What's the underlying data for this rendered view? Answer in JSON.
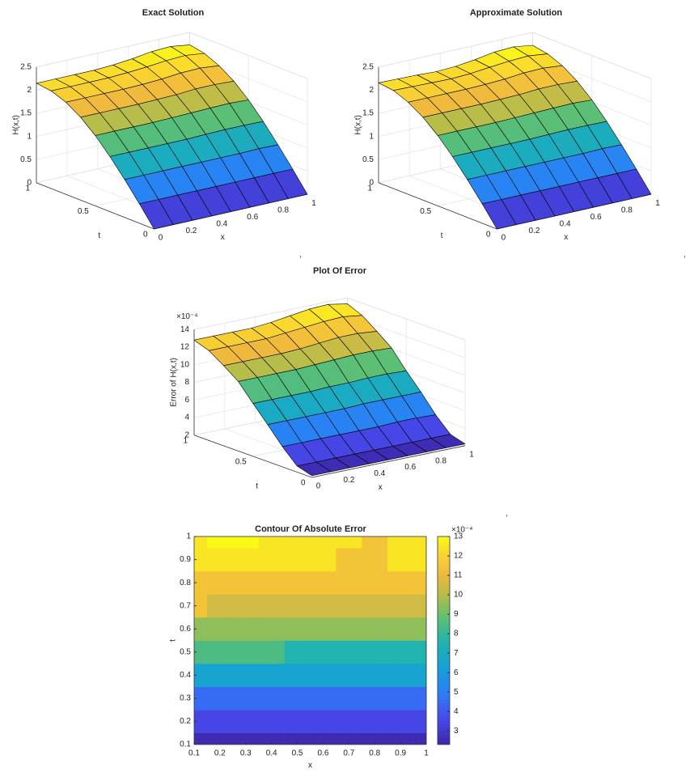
{
  "chart_data": [
    {
      "type": "surface",
      "title": "Exact Solution",
      "xlabel": "x",
      "ylabel": "t",
      "zlabel": "H(x,t)",
      "x": [
        0,
        0.125,
        0.25,
        0.375,
        0.5,
        0.625,
        0.75,
        0.875,
        1
      ],
      "y": [
        0,
        0.125,
        0.25,
        0.375,
        0.5,
        0.625,
        0.75,
        0.875,
        1
      ],
      "z": [
        [
          0,
          0,
          0,
          0,
          0,
          0,
          0,
          0,
          0
        ],
        [
          0.42,
          0.42,
          0.42,
          0.42,
          0.42,
          0.42,
          0.42,
          0.42,
          0.42
        ],
        [
          0.82,
          0.82,
          0.82,
          0.82,
          0.82,
          0.82,
          0.82,
          0.83,
          0.82
        ],
        [
          1.19,
          1.19,
          1.19,
          1.19,
          1.19,
          1.2,
          1.21,
          1.21,
          1.2
        ],
        [
          1.52,
          1.52,
          1.52,
          1.52,
          1.53,
          1.54,
          1.55,
          1.56,
          1.54
        ],
        [
          1.79,
          1.79,
          1.79,
          1.79,
          1.8,
          1.81,
          1.84,
          1.84,
          1.82
        ],
        [
          1.99,
          1.99,
          1.99,
          1.99,
          2,
          2.02,
          2.06,
          2.07,
          2.03
        ],
        [
          2.11,
          2.11,
          2.11,
          2.11,
          2.13,
          2.16,
          2.2,
          2.22,
          2.17
        ],
        [
          2.15,
          2.15,
          2.15,
          2.15,
          2.17,
          2.21,
          2.27,
          2.29,
          2.23
        ]
      ],
      "xlim": [
        0,
        1
      ],
      "ylim": [
        0,
        1
      ],
      "zlim": [
        0,
        2.5
      ],
      "xticks": [
        0,
        0.2,
        0.4,
        0.6,
        0.8,
        1
      ],
      "yticks": [
        0,
        0.5,
        1
      ],
      "zticks": [
        0,
        0.5,
        1,
        1.5,
        2,
        2.5
      ],
      "grid": true
    },
    {
      "type": "surface",
      "title": "Approximate Solution",
      "xlabel": "x",
      "ylabel": "t",
      "zlabel": "H(x,t)",
      "x": [
        0,
        0.125,
        0.25,
        0.375,
        0.5,
        0.625,
        0.75,
        0.875,
        1
      ],
      "y": [
        0,
        0.125,
        0.25,
        0.375,
        0.5,
        0.625,
        0.75,
        0.875,
        1
      ],
      "z": [
        [
          0,
          0,
          0,
          0,
          0,
          0,
          0,
          0,
          0
        ],
        [
          0.42,
          0.42,
          0.42,
          0.42,
          0.42,
          0.42,
          0.42,
          0.42,
          0.42
        ],
        [
          0.82,
          0.82,
          0.82,
          0.82,
          0.82,
          0.82,
          0.82,
          0.83,
          0.82
        ],
        [
          1.19,
          1.19,
          1.19,
          1.19,
          1.19,
          1.2,
          1.21,
          1.21,
          1.2
        ],
        [
          1.52,
          1.52,
          1.52,
          1.52,
          1.53,
          1.54,
          1.55,
          1.56,
          1.54
        ],
        [
          1.79,
          1.79,
          1.79,
          1.79,
          1.8,
          1.81,
          1.84,
          1.84,
          1.82
        ],
        [
          1.99,
          1.99,
          1.99,
          1.99,
          2,
          2.02,
          2.06,
          2.07,
          2.03
        ],
        [
          2.12,
          2.11,
          2.1,
          2.09,
          2.11,
          2.15,
          2.19,
          2.21,
          2.16
        ],
        [
          2.16,
          2.15,
          2.14,
          2.12,
          2.14,
          2.19,
          2.26,
          2.28,
          2.22
        ]
      ],
      "xlim": [
        0,
        1
      ],
      "ylim": [
        0,
        1
      ],
      "zlim": [
        0,
        2.5
      ],
      "xticks": [
        0,
        0.2,
        0.4,
        0.6,
        0.8,
        1
      ],
      "yticks": [
        0,
        0.5,
        1
      ],
      "zticks": [
        0,
        0.5,
        1,
        1.5,
        2,
        2.5
      ],
      "grid": true
    },
    {
      "type": "surface",
      "title": "Plot Of Error",
      "xlabel": "x",
      "ylabel": "t",
      "zlabel": "Error of H(x,t)",
      "z_exponent_label": "×10⁻⁴",
      "x": [
        0,
        0.125,
        0.25,
        0.375,
        0.5,
        0.625,
        0.75,
        0.875,
        1
      ],
      "y": [
        0,
        0.125,
        0.25,
        0.375,
        0.5,
        0.625,
        0.75,
        0.875,
        1
      ],
      "z": [
        [
          2.2,
          2.2,
          2.2,
          2.2,
          2.2,
          2.2,
          2.2,
          2.2,
          2.2
        ],
        [
          2.7,
          2.7,
          2.7,
          2.7,
          2.7,
          2.7,
          2.7,
          2.7,
          2.7
        ],
        [
          4.3,
          4.3,
          4.3,
          4.3,
          4.3,
          4.3,
          4.4,
          4.4,
          4.3
        ],
        [
          6.2,
          6.2,
          6.2,
          6.2,
          6.2,
          6.3,
          6.3,
          6.3,
          6.3
        ],
        [
          8,
          8,
          8,
          8,
          8.1,
          8.1,
          8.2,
          8.2,
          8.1
        ],
        [
          9.9,
          9.9,
          9.9,
          9.9,
          10,
          10.1,
          10.2,
          10.2,
          10.1
        ],
        [
          11.1,
          11.1,
          11.1,
          11.1,
          11.2,
          11.4,
          11.6,
          11.6,
          11.4
        ],
        [
          12.2,
          12.2,
          12.2,
          12.2,
          12.4,
          12.6,
          12.8,
          12.9,
          12.6
        ],
        [
          12.8,
          12.8,
          12.8,
          12.8,
          13,
          13.3,
          13.6,
          13.7,
          13.3
        ]
      ],
      "xlim": [
        0,
        1
      ],
      "ylim": [
        0,
        1
      ],
      "zlim": [
        2,
        14
      ],
      "xticks": [
        0,
        0.2,
        0.4,
        0.6,
        0.8,
        1
      ],
      "yticks": [
        0,
        0.5,
        1
      ],
      "zticks": [
        2,
        4,
        6,
        8,
        10,
        12,
        14
      ],
      "grid": true
    },
    {
      "type": "contour",
      "title": "Contour Of Absolute Error",
      "xlabel": "x",
      "ylabel": "t",
      "x": [
        0.1,
        0.2,
        0.3,
        0.4,
        0.5,
        0.6,
        0.7,
        0.8,
        0.9,
        1
      ],
      "y": [
        0.1,
        0.2,
        0.3,
        0.4,
        0.5,
        0.6,
        0.7,
        0.8,
        0.9,
        1
      ],
      "z": [
        [
          2.4,
          2.4,
          2.4,
          2.4,
          2.4,
          2.4,
          2.4,
          2.4,
          2.4,
          2.4
        ],
        [
          3.3,
          3.3,
          3.3,
          3.3,
          3.3,
          3.3,
          3.3,
          3.3,
          3.3,
          3.3
        ],
        [
          4.8,
          4.8,
          4.8,
          4.8,
          4.8,
          4.8,
          4.8,
          4.8,
          4.8,
          4.8
        ],
        [
          6.4,
          6.4,
          6.4,
          6.4,
          6.3,
          6.2,
          6.1,
          6.1,
          6.2,
          6.3
        ],
        [
          8.1,
          8,
          8,
          8,
          7.9,
          7.8,
          7.7,
          7.7,
          7.8,
          7.9
        ],
        [
          9.8,
          9.7,
          9.7,
          9.6,
          9.5,
          9.3,
          9.2,
          9.1,
          9.2,
          9.4
        ],
        [
          11,
          10.9,
          10.9,
          10.8,
          10.7,
          10.5,
          10.2,
          10.1,
          10.3,
          10.6
        ],
        [
          11.9,
          11.9,
          11.9,
          11.8,
          11.6,
          11.4,
          11.2,
          11.2,
          11.3,
          11.4
        ],
        [
          12.4,
          12.5,
          12.5,
          12.3,
          12.2,
          12.1,
          11.9,
          11.8,
          12.1,
          12.2
        ],
        [
          12.6,
          13.1,
          13.1,
          12.8,
          12.6,
          12.5,
          12.3,
          11.9,
          12.4,
          12.8
        ]
      ],
      "xlim": [
        0.1,
        1
      ],
      "ylim": [
        0.1,
        1
      ],
      "xticks": [
        0.1,
        0.2,
        0.3,
        0.4,
        0.5,
        0.6,
        0.7,
        0.8,
        0.9,
        1
      ],
      "yticks": [
        0.1,
        0.2,
        0.3,
        0.4,
        0.5,
        0.6,
        0.7,
        0.8,
        0.9,
        1
      ],
      "colorbar": {
        "lim": [
          2.3,
          13
        ],
        "ticks": [
          3,
          4,
          5,
          6,
          7,
          8,
          9,
          10,
          11,
          12,
          13
        ],
        "exponent_label": "×10⁻⁴"
      }
    }
  ],
  "separators": [
    ",",
    ",",
    ","
  ]
}
